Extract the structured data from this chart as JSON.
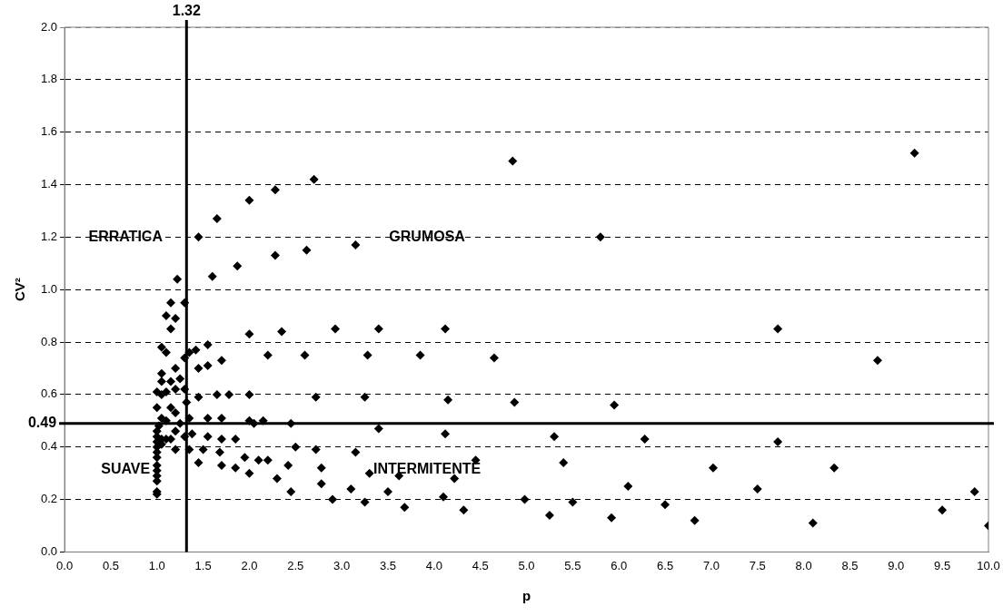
{
  "chart_data": {
    "type": "scatter",
    "xlabel": "p",
    "ylabel": "CV²",
    "xlim": [
      0,
      10
    ],
    "ylim": [
      0,
      2
    ],
    "xticks": [
      {
        "value": 0,
        "label": "0.0"
      },
      {
        "value": 0.5,
        "label": "0.5"
      },
      {
        "value": 1,
        "label": "1.0"
      },
      {
        "value": 1.5,
        "label": "1.5"
      },
      {
        "value": 2,
        "label": "2.0"
      },
      {
        "value": 2.5,
        "label": "2.5"
      },
      {
        "value": 3,
        "label": "3.0"
      },
      {
        "value": 3.5,
        "label": "3.5"
      },
      {
        "value": 4,
        "label": "4.0"
      },
      {
        "value": 4.5,
        "label": "4.5"
      },
      {
        "value": 5,
        "label": "5.0"
      },
      {
        "value": 5.5,
        "label": "5.5"
      },
      {
        "value": 6,
        "label": "6.0"
      },
      {
        "value": 6.5,
        "label": "6.5"
      },
      {
        "value": 7,
        "label": "7.0"
      },
      {
        "value": 7.5,
        "label": "7.5"
      },
      {
        "value": 8,
        "label": "8.0"
      },
      {
        "value": 8.5,
        "label": "8.5"
      },
      {
        "value": 9,
        "label": "9.0"
      },
      {
        "value": 9.5,
        "label": "9.5"
      },
      {
        "value": 10,
        "label": "10.0"
      }
    ],
    "yticks": [
      {
        "value": 0,
        "label": "0.0"
      },
      {
        "value": 0.2,
        "label": "0.2"
      },
      {
        "value": 0.4,
        "label": "0.4"
      },
      {
        "value": 0.6,
        "label": "0.6"
      },
      {
        "value": 0.8,
        "label": "0.8"
      },
      {
        "value": 1,
        "label": "1.0"
      },
      {
        "value": 1.2,
        "label": "1.2"
      },
      {
        "value": 1.4,
        "label": "1.4"
      },
      {
        "value": 1.6,
        "label": "1.6"
      },
      {
        "value": 1.8,
        "label": "1.8"
      },
      {
        "value": 2,
        "label": "2.0"
      }
    ],
    "grid": "y",
    "marker": "diamond",
    "legend": false,
    "series": [
      {
        "color": "#000000",
        "x": [
          1.45,
          1.65,
          2.0,
          2.28,
          2.7,
          4.85,
          9.2,
          5.8,
          3.15,
          2.62,
          2.28,
          1.87,
          1.6,
          1.22,
          1.3,
          1.15,
          1.1,
          1.2,
          1.15,
          2.0,
          2.35,
          2.93,
          3.4,
          4.12,
          7.72,
          8.8,
          1.55,
          1.05,
          1.1,
          1.35,
          1.42,
          1.7,
          1.3,
          2.2,
          2.6,
          3.28,
          3.85,
          4.65,
          1.2,
          1.45,
          1.55,
          1.05,
          1.05,
          1.15,
          1.25,
          1.3,
          1.2,
          1.1,
          1.0,
          1.05,
          1.45,
          1.65,
          1.78,
          2.0,
          2.72,
          3.25,
          4.15,
          4.87,
          5.95,
          1.0,
          1.15,
          1.2,
          1.32,
          1.05,
          1.1,
          1.02,
          1.25,
          1.35,
          1.55,
          1.7,
          2.0,
          2.15,
          2.45,
          2.05,
          1.0,
          1.0,
          1.0,
          1.05,
          1.1,
          1.15,
          1.2,
          1.3,
          1.38,
          1.55,
          1.7,
          3.4,
          4.12,
          5.3,
          6.28,
          7.72,
          1.0,
          1.0,
          1.0,
          1.0,
          1.0,
          1.0,
          1.0,
          1.0,
          1.0,
          1.05,
          1.2,
          1.35,
          1.5,
          1.68,
          1.85,
          1.95,
          2.2,
          2.5,
          2.72,
          3.15,
          1.45,
          1.7,
          1.85,
          2.0,
          2.1,
          2.3,
          2.42,
          2.78,
          2.78,
          2.45,
          2.9,
          3.1,
          3.25,
          3.3,
          3.5,
          3.62,
          3.68,
          4.1,
          4.22,
          4.32,
          4.45,
          4.98,
          5.25,
          5.4,
          5.5,
          5.92,
          6.1,
          6.5,
          6.82,
          7.02,
          7.5,
          8.1,
          8.33,
          9.5,
          9.85,
          10.0
        ],
        "values": [
          1.2,
          1.27,
          1.34,
          1.38,
          1.42,
          1.49,
          1.52,
          1.2,
          1.17,
          1.15,
          1.13,
          1.09,
          1.05,
          1.04,
          0.95,
          0.95,
          0.9,
          0.89,
          0.85,
          0.83,
          0.84,
          0.85,
          0.85,
          0.85,
          0.85,
          0.73,
          0.79,
          0.78,
          0.76,
          0.76,
          0.77,
          0.73,
          0.74,
          0.75,
          0.75,
          0.75,
          0.75,
          0.74,
          0.7,
          0.7,
          0.71,
          0.68,
          0.65,
          0.65,
          0.66,
          0.62,
          0.62,
          0.61,
          0.61,
          0.6,
          0.59,
          0.6,
          0.6,
          0.6,
          0.59,
          0.59,
          0.58,
          0.57,
          0.56,
          0.55,
          0.55,
          0.53,
          0.57,
          0.51,
          0.5,
          0.48,
          0.49,
          0.51,
          0.51,
          0.51,
          0.5,
          0.5,
          0.49,
          0.49,
          0.46,
          0.44,
          0.42,
          0.43,
          0.43,
          0.43,
          0.46,
          0.44,
          0.45,
          0.44,
          0.43,
          0.47,
          0.45,
          0.44,
          0.43,
          0.42,
          0.4,
          0.38,
          0.36,
          0.33,
          0.31,
          0.29,
          0.27,
          0.23,
          0.22,
          0.41,
          0.39,
          0.39,
          0.39,
          0.38,
          0.43,
          0.36,
          0.35,
          0.4,
          0.39,
          0.38,
          0.34,
          0.33,
          0.32,
          0.3,
          0.35,
          0.28,
          0.33,
          0.32,
          0.26,
          0.23,
          0.2,
          0.24,
          0.19,
          0.3,
          0.23,
          0.29,
          0.17,
          0.21,
          0.28,
          0.16,
          0.35,
          0.2,
          0.14,
          0.34,
          0.19,
          0.13,
          0.25,
          0.18,
          0.12,
          0.32,
          0.24,
          0.11,
          0.32,
          0.16,
          0.23,
          0.1
        ]
      }
    ],
    "ref_lines": [
      {
        "axis": "x",
        "value": 1.32,
        "label": "1.32",
        "color": "#000000"
      },
      {
        "axis": "y",
        "value": 0.49,
        "label": "0.49",
        "color": "#000000"
      }
    ],
    "annotations": [
      "ERRATICA",
      "GRUMOSA",
      "SUAVE",
      "INTERMITENTE"
    ]
  }
}
